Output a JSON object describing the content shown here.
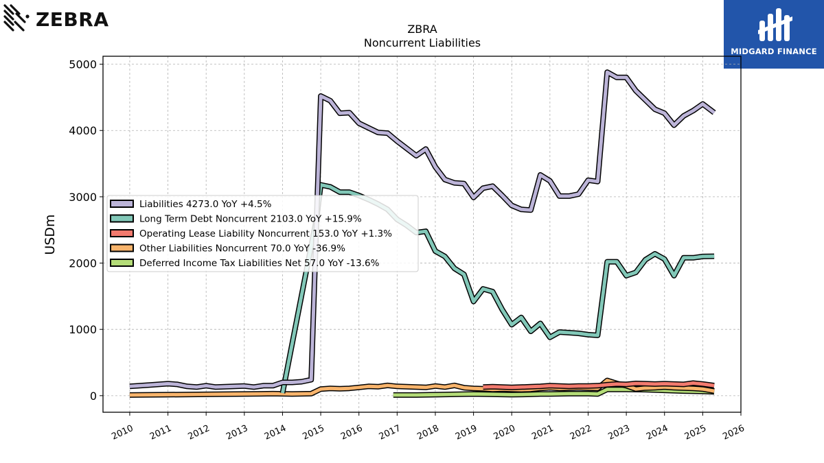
{
  "brand": {
    "left": "ZEBRA",
    "right": "MIDGARD FINANCE"
  },
  "chart_data": {
    "type": "line",
    "title": "ZBRA",
    "subtitle": "Noncurrent  Liabilities",
    "ylabel": "USDm",
    "xlim": [
      2009.3,
      2026.0
    ],
    "ylim": [
      -250,
      5120
    ],
    "xticks": [
      "2010",
      "2011",
      "2012",
      "2013",
      "2014",
      "2015",
      "2016",
      "2017",
      "2018",
      "2019",
      "2020",
      "2021",
      "2022",
      "2023",
      "2024",
      "2025",
      "2026"
    ],
    "yticks": [
      0,
      1000,
      2000,
      3000,
      4000,
      5000
    ],
    "grid": true,
    "legend_position": "center-left",
    "series": [
      {
        "name": "Liabilities",
        "legend": "Liabilities  4273.0 YoY +4.5%",
        "color": "#bcb4d8",
        "points": [
          [
            2010.0,
            140
          ],
          [
            2010.5,
            160
          ],
          [
            2011.0,
            180
          ],
          [
            2011.25,
            170
          ],
          [
            2011.5,
            140
          ],
          [
            2011.75,
            130
          ],
          [
            2012.0,
            150
          ],
          [
            2012.25,
            130
          ],
          [
            2012.5,
            135
          ],
          [
            2012.75,
            140
          ],
          [
            2013.0,
            145
          ],
          [
            2013.25,
            130
          ],
          [
            2013.5,
            150
          ],
          [
            2013.75,
            150
          ],
          [
            2014.0,
            200
          ],
          [
            2014.25,
            200
          ],
          [
            2014.5,
            210
          ],
          [
            2014.75,
            240
          ],
          [
            2015.0,
            4520
          ],
          [
            2015.25,
            4450
          ],
          [
            2015.5,
            4260
          ],
          [
            2015.75,
            4270
          ],
          [
            2016.0,
            4110
          ],
          [
            2016.25,
            4040
          ],
          [
            2016.5,
            3970
          ],
          [
            2016.75,
            3960
          ],
          [
            2017.0,
            3840
          ],
          [
            2017.25,
            3730
          ],
          [
            2017.5,
            3620
          ],
          [
            2017.75,
            3720
          ],
          [
            2018.0,
            3450
          ],
          [
            2018.25,
            3260
          ],
          [
            2018.5,
            3210
          ],
          [
            2018.75,
            3200
          ],
          [
            2019.0,
            2990
          ],
          [
            2019.25,
            3130
          ],
          [
            2019.5,
            3160
          ],
          [
            2019.75,
            3020
          ],
          [
            2020.0,
            2870
          ],
          [
            2020.25,
            2810
          ],
          [
            2020.5,
            2800
          ],
          [
            2020.75,
            3330
          ],
          [
            2021.0,
            3240
          ],
          [
            2021.25,
            3010
          ],
          [
            2021.5,
            3010
          ],
          [
            2021.75,
            3040
          ],
          [
            2022.0,
            3250
          ],
          [
            2022.25,
            3230
          ],
          [
            2022.5,
            4880
          ],
          [
            2022.75,
            4800
          ],
          [
            2023.0,
            4800
          ],
          [
            2023.25,
            4600
          ],
          [
            2023.5,
            4460
          ],
          [
            2023.75,
            4320
          ],
          [
            2024.0,
            4260
          ],
          [
            2024.25,
            4080
          ],
          [
            2024.5,
            4220
          ],
          [
            2024.75,
            4300
          ],
          [
            2025.0,
            4400
          ],
          [
            2025.3,
            4270
          ]
        ]
      },
      {
        "name": "Long Term Debt Noncurrent",
        "legend": "Long Term Debt Noncurrent  2103.0 YoY +15.9%",
        "color": "#82c8b8",
        "points": [
          [
            2014.0,
            40
          ],
          [
            2014.9,
            2700
          ],
          [
            2015.0,
            3180
          ],
          [
            2015.25,
            3150
          ],
          [
            2015.5,
            3070
          ],
          [
            2015.75,
            3070
          ],
          [
            2016.0,
            3020
          ],
          [
            2016.25,
            2960
          ],
          [
            2016.5,
            2890
          ],
          [
            2016.75,
            2810
          ],
          [
            2017.0,
            2660
          ],
          [
            2017.25,
            2570
          ],
          [
            2017.5,
            2460
          ],
          [
            2017.75,
            2480
          ],
          [
            2018.0,
            2180
          ],
          [
            2018.25,
            2100
          ],
          [
            2018.5,
            1920
          ],
          [
            2018.75,
            1830
          ],
          [
            2019.0,
            1420
          ],
          [
            2019.25,
            1610
          ],
          [
            2019.5,
            1570
          ],
          [
            2019.75,
            1300
          ],
          [
            2020.0,
            1070
          ],
          [
            2020.25,
            1180
          ],
          [
            2020.5,
            970
          ],
          [
            2020.75,
            1090
          ],
          [
            2021.0,
            880
          ],
          [
            2021.25,
            960
          ],
          [
            2021.5,
            950
          ],
          [
            2021.75,
            940
          ],
          [
            2022.0,
            920
          ],
          [
            2022.25,
            910
          ],
          [
            2022.5,
            2020
          ],
          [
            2022.75,
            2020
          ],
          [
            2023.0,
            1810
          ],
          [
            2023.25,
            1860
          ],
          [
            2023.5,
            2050
          ],
          [
            2023.75,
            2140
          ],
          [
            2024.0,
            2060
          ],
          [
            2024.25,
            1810
          ],
          [
            2024.5,
            2080
          ],
          [
            2024.75,
            2080
          ],
          [
            2025.0,
            2100
          ],
          [
            2025.3,
            2103
          ]
        ]
      },
      {
        "name": "Operating Lease Liability Noncurrent",
        "legend": "Operating Lease Liability Noncurrent  153.0 YoY +1.3%",
        "color": "#f27a6e",
        "points": [
          [
            2019.25,
            130
          ],
          [
            2019.5,
            135
          ],
          [
            2019.75,
            130
          ],
          [
            2020.0,
            125
          ],
          [
            2020.25,
            130
          ],
          [
            2020.5,
            135
          ],
          [
            2020.75,
            140
          ],
          [
            2021.0,
            150
          ],
          [
            2021.25,
            145
          ],
          [
            2021.5,
            140
          ],
          [
            2021.75,
            145
          ],
          [
            2022.0,
            145
          ],
          [
            2022.25,
            150
          ],
          [
            2022.5,
            165
          ],
          [
            2022.75,
            175
          ],
          [
            2023.0,
            170
          ],
          [
            2023.25,
            185
          ],
          [
            2023.5,
            180
          ],
          [
            2023.75,
            175
          ],
          [
            2024.0,
            180
          ],
          [
            2024.25,
            175
          ],
          [
            2024.5,
            170
          ],
          [
            2024.75,
            190
          ],
          [
            2025.0,
            175
          ],
          [
            2025.3,
            153
          ]
        ]
      },
      {
        "name": "Other Liabilities Noncurrent",
        "legend": "Other Liabilities Noncurrent  70.0 YoY -36.9%",
        "color": "#f8b46c",
        "points": [
          [
            2010.0,
            10
          ],
          [
            2011.0,
            15
          ],
          [
            2012.0,
            20
          ],
          [
            2013.0,
            25
          ],
          [
            2013.75,
            30
          ],
          [
            2014.25,
            25
          ],
          [
            2014.75,
            30
          ],
          [
            2015.0,
            100
          ],
          [
            2015.25,
            110
          ],
          [
            2015.5,
            105
          ],
          [
            2015.75,
            110
          ],
          [
            2016.0,
            125
          ],
          [
            2016.25,
            140
          ],
          [
            2016.5,
            135
          ],
          [
            2016.75,
            155
          ],
          [
            2017.0,
            140
          ],
          [
            2017.25,
            135
          ],
          [
            2017.5,
            130
          ],
          [
            2017.75,
            125
          ],
          [
            2018.0,
            145
          ],
          [
            2018.25,
            130
          ],
          [
            2018.5,
            155
          ],
          [
            2018.75,
            120
          ],
          [
            2019.0,
            110
          ],
          [
            2019.25,
            105
          ],
          [
            2019.5,
            95
          ],
          [
            2019.75,
            100
          ],
          [
            2020.0,
            95
          ],
          [
            2020.25,
            90
          ],
          [
            2020.5,
            95
          ],
          [
            2020.75,
            110
          ],
          [
            2021.0,
            120
          ],
          [
            2021.25,
            110
          ],
          [
            2021.5,
            115
          ],
          [
            2021.75,
            120
          ],
          [
            2022.0,
            115
          ],
          [
            2022.25,
            110
          ],
          [
            2022.5,
            230
          ],
          [
            2022.75,
            185
          ],
          [
            2023.0,
            150
          ],
          [
            2023.25,
            100
          ],
          [
            2023.5,
            115
          ],
          [
            2023.75,
            120
          ],
          [
            2024.0,
            130
          ],
          [
            2024.25,
            120
          ],
          [
            2024.5,
            115
          ],
          [
            2024.75,
            110
          ],
          [
            2025.0,
            100
          ],
          [
            2025.3,
            70
          ]
        ]
      },
      {
        "name": "Deferred Income Tax Liabilities Net",
        "legend": "Deferred Income Tax Liabilities Net  57.0 YoY -13.6%",
        "color": "#b4dc78",
        "points": [
          [
            2016.9,
            10
          ],
          [
            2017.5,
            10
          ],
          [
            2018.0,
            15
          ],
          [
            2018.5,
            20
          ],
          [
            2019.0,
            25
          ],
          [
            2019.5,
            20
          ],
          [
            2020.0,
            15
          ],
          [
            2020.5,
            20
          ],
          [
            2020.75,
            25
          ],
          [
            2021.0,
            25
          ],
          [
            2021.5,
            30
          ],
          [
            2022.0,
            30
          ],
          [
            2022.25,
            25
          ],
          [
            2022.5,
            95
          ],
          [
            2023.0,
            95
          ],
          [
            2023.5,
            90
          ],
          [
            2024.0,
            80
          ],
          [
            2024.5,
            70
          ],
          [
            2025.0,
            65
          ],
          [
            2025.3,
            57
          ]
        ]
      }
    ]
  }
}
